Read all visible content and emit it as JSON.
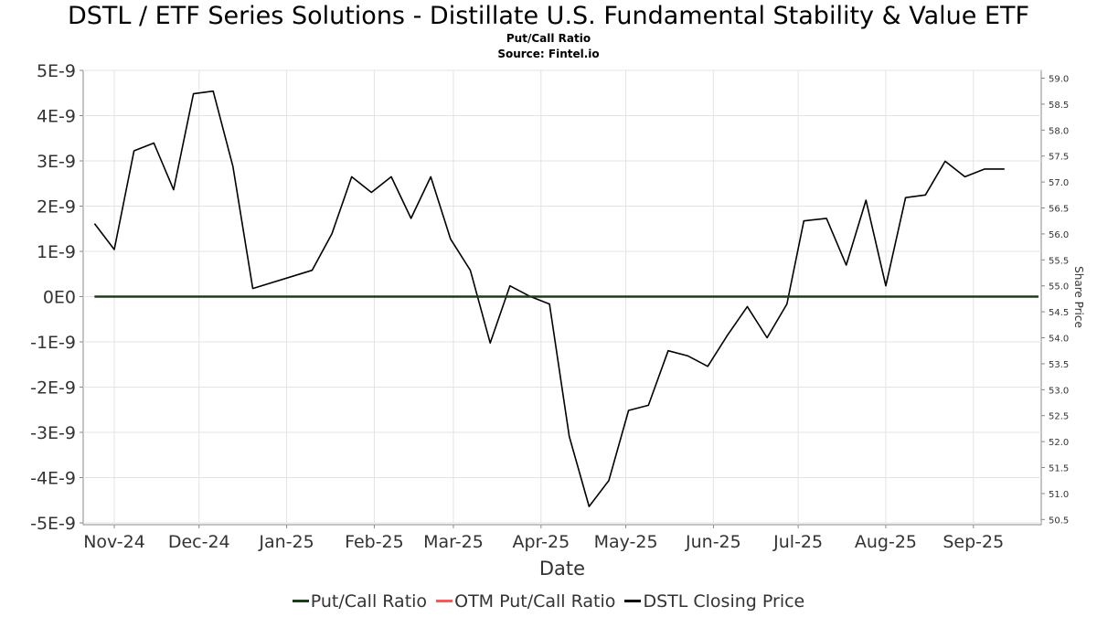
{
  "title": "DSTL / ETF Series Solutions - Distillate U.S. Fundamental Stability & Value ETF",
  "subtitle": "Put/Call Ratio",
  "source": "Source: Fintel.io",
  "legend": [
    {
      "label": "Put/Call Ratio",
      "color": "#1a3d1a"
    },
    {
      "label": "OTM Put/Call Ratio",
      "color": "#ff5555"
    },
    {
      "label": "DSTL Closing Price",
      "color": "#000000"
    }
  ],
  "chart_data": {
    "type": "line",
    "title": "DSTL / ETF Series Solutions - Distillate U.S. Fundamental Stability & Value ETF",
    "subtitle": "Put/Call Ratio",
    "xlabel": "Date",
    "ylabel_left": "",
    "ylabel_right": "Share Price",
    "x_ticks": [
      {
        "label": "Nov-24",
        "date": "2024-11-01"
      },
      {
        "label": "Dec-24",
        "date": "2024-12-01"
      },
      {
        "label": "Jan-25",
        "date": "2025-01-01"
      },
      {
        "label": "Feb-25",
        "date": "2025-02-01"
      },
      {
        "label": "Mar-25",
        "date": "2025-03-01"
      },
      {
        "label": "Apr-25",
        "date": "2025-04-01"
      },
      {
        "label": "May-25",
        "date": "2025-05-01"
      },
      {
        "label": "Jun-25",
        "date": "2025-06-01"
      },
      {
        "label": "Jul-25",
        "date": "2025-07-01"
      },
      {
        "label": "Aug-25",
        "date": "2025-08-01"
      },
      {
        "label": "Sep-25",
        "date": "2025-09-01"
      }
    ],
    "xlim": [
      "2024-10-21",
      "2025-09-25"
    ],
    "y_left_ticks": [
      "5E-9",
      "4E-9",
      "3E-9",
      "2E-9",
      "1E-9",
      "0E0",
      "-1E-9",
      "-2E-9",
      "-3E-9",
      "-4E-9",
      "-5E-9"
    ],
    "y_left_lim": [
      -5e-09,
      5e-09
    ],
    "y_right_ticks": [
      "59.0",
      "58.5",
      "58.0",
      "57.5",
      "57.0",
      "56.5",
      "56.0",
      "55.5",
      "55.0",
      "54.5",
      "54.0",
      "53.5",
      "53.0",
      "52.5",
      "52.0",
      "51.5",
      "51.0",
      "50.5"
    ],
    "y_right_lim": [
      50.4,
      59.15
    ],
    "grid": true,
    "legend_position": "bottom",
    "series": [
      {
        "name": "Put/Call Ratio",
        "axis": "left",
        "color": "#1a3d1a",
        "x": [
          "2024-10-25",
          "2025-09-24"
        ],
        "y": [
          0,
          0
        ]
      },
      {
        "name": "OTM Put/Call Ratio",
        "axis": "left",
        "color": "#ff5555",
        "x": [
          "2024-10-25",
          "2025-09-24"
        ],
        "y": [
          0,
          0
        ]
      },
      {
        "name": "DSTL Closing Price",
        "axis": "right",
        "color": "#000000",
        "x": [
          "2024-10-25",
          "2024-11-01",
          "2024-11-08",
          "2024-11-15",
          "2024-11-22",
          "2024-11-29",
          "2024-12-06",
          "2024-12-13",
          "2024-12-20",
          "2025-01-10",
          "2025-01-17",
          "2025-01-24",
          "2025-01-31",
          "2025-02-07",
          "2025-02-14",
          "2025-02-21",
          "2025-02-28",
          "2025-03-07",
          "2025-03-14",
          "2025-03-21",
          "2025-03-28",
          "2025-04-04",
          "2025-04-11",
          "2025-04-18",
          "2025-04-25",
          "2025-05-02",
          "2025-05-09",
          "2025-05-16",
          "2025-05-23",
          "2025-05-30",
          "2025-06-06",
          "2025-06-13",
          "2025-06-20",
          "2025-06-27",
          "2025-07-03",
          "2025-07-11",
          "2025-07-18",
          "2025-07-25",
          "2025-08-01",
          "2025-08-08",
          "2025-08-15",
          "2025-08-22",
          "2025-08-29",
          "2025-09-05",
          "2025-09-12"
        ],
        "y": [
          56.2,
          55.7,
          57.6,
          57.75,
          56.85,
          58.7,
          58.75,
          57.3,
          54.95,
          55.3,
          56.0,
          57.1,
          56.8,
          57.1,
          56.3,
          57.1,
          55.9,
          55.3,
          53.9,
          55.0,
          54.8,
          54.65,
          52.1,
          50.75,
          51.25,
          52.6,
          52.7,
          53.75,
          53.65,
          53.45,
          54.05,
          54.6,
          54.0,
          54.65,
          56.25,
          56.3,
          55.4,
          56.65,
          55.0,
          56.7,
          56.75,
          57.4,
          57.1,
          57.25,
          57.25
        ]
      }
    ]
  }
}
